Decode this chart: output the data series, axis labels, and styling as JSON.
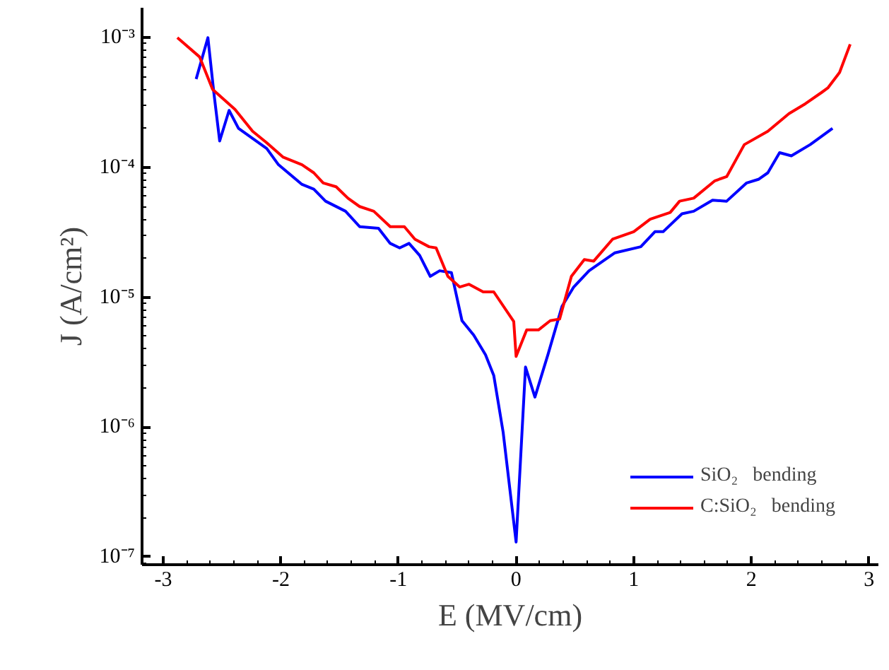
{
  "chart_data": {
    "type": "line",
    "xlabel": "E (MV/cm)",
    "ylabel": "J (A/cm²)",
    "log": "y",
    "grid": false,
    "legend": "bottom right",
    "marker": "none",
    "line_style": "solid",
    "xlim": [
      -3.18,
      3.08
    ],
    "ylim": [
      8.7e-08,
      0.0017
    ],
    "xticks": [
      -3,
      -2,
      -1,
      0,
      1,
      2,
      3
    ],
    "yticks": [
      {
        "value": 1e-07,
        "label": "10⁻⁷"
      },
      {
        "value": 1e-06,
        "label": "10⁻⁶"
      },
      {
        "value": 1e-05,
        "label": "10⁻⁵"
      },
      {
        "value": 0.0001,
        "label": "10⁻⁴"
      },
      {
        "value": 0.001,
        "label": "10⁻³"
      }
    ],
    "series": [
      {
        "name": "SiO₂   bending",
        "color": "#0000ff",
        "x": [
          -2.72,
          -2.62,
          -2.57,
          -2.52,
          -2.44,
          -2.36,
          -2.12,
          -2.02,
          -1.82,
          -1.72,
          -1.62,
          -1.45,
          -1.33,
          -1.17,
          -1.07,
          -0.99,
          -0.91,
          -0.82,
          -0.73,
          -0.65,
          -0.55,
          -0.46,
          -0.36,
          -0.26,
          -0.19,
          -0.11,
          0.0,
          0.08,
          0.16,
          0.27,
          0.39,
          0.49,
          0.62,
          0.84,
          1.06,
          1.18,
          1.25,
          1.41,
          1.51,
          1.67,
          1.79,
          1.96,
          2.06,
          2.14,
          2.24,
          2.34,
          2.5,
          2.69
        ],
        "values": [
          0.00048,
          0.001,
          0.00038,
          0.00016,
          0.000275,
          0.0002,
          0.00014,
          0.000105,
          7.4e-05,
          6.8e-05,
          5.5e-05,
          4.6e-05,
          3.5e-05,
          3.4e-05,
          2.6e-05,
          2.4e-05,
          2.6e-05,
          2.1e-05,
          1.45e-05,
          1.6e-05,
          1.55e-05,
          6.6e-06,
          5.1e-06,
          3.6e-06,
          2.5e-06,
          9.1e-07,
          1.3e-07,
          2.9e-06,
          1.7e-06,
          3.6e-06,
          8.5e-06,
          1.2e-05,
          1.6e-05,
          2.2e-05,
          2.45e-05,
          3.2e-05,
          3.2e-05,
          4.4e-05,
          4.6e-05,
          5.6e-05,
          5.5e-05,
          7.6e-05,
          8.1e-05,
          9.1e-05,
          0.00013,
          0.000123,
          0.00015,
          0.0002
        ]
      },
      {
        "name": "C:SiO₂   bending",
        "color": "#ff0000",
        "x": [
          -2.88,
          -2.69,
          -2.58,
          -2.39,
          -2.24,
          -2.12,
          -1.98,
          -1.82,
          -1.72,
          -1.64,
          -1.53,
          -1.43,
          -1.33,
          -1.21,
          -1.07,
          -0.95,
          -0.86,
          -0.74,
          -0.68,
          -0.58,
          -0.48,
          -0.4,
          -0.28,
          -0.19,
          -0.02,
          0.0,
          0.09,
          0.19,
          0.29,
          0.37,
          0.47,
          0.58,
          0.66,
          0.82,
          1.0,
          1.14,
          1.31,
          1.39,
          1.51,
          1.69,
          1.79,
          1.94,
          2.14,
          2.32,
          2.46,
          2.6,
          2.65,
          2.75,
          2.84
        ],
        "values": [
          0.001,
          0.00071,
          0.0004,
          0.00028,
          0.00019,
          0.000155,
          0.00012,
          0.000105,
          9.1e-05,
          7.6e-05,
          7.1e-05,
          5.8e-05,
          5e-05,
          4.6e-05,
          3.5e-05,
          3.5e-05,
          2.8e-05,
          2.45e-05,
          2.4e-05,
          1.45e-05,
          1.2e-05,
          1.26e-05,
          1.1e-05,
          1.1e-05,
          6.5e-06,
          3.5e-06,
          5.6e-06,
          5.6e-06,
          6.6e-06,
          6.8e-06,
          1.45e-05,
          1.95e-05,
          1.9e-05,
          2.8e-05,
          3.2e-05,
          4e-05,
          4.5e-05,
          5.5e-05,
          5.8e-05,
          7.9e-05,
          8.5e-05,
          0.00015,
          0.00019,
          0.00026,
          0.00031,
          0.00038,
          0.00041,
          0.00054,
          0.00089
        ]
      }
    ]
  }
}
